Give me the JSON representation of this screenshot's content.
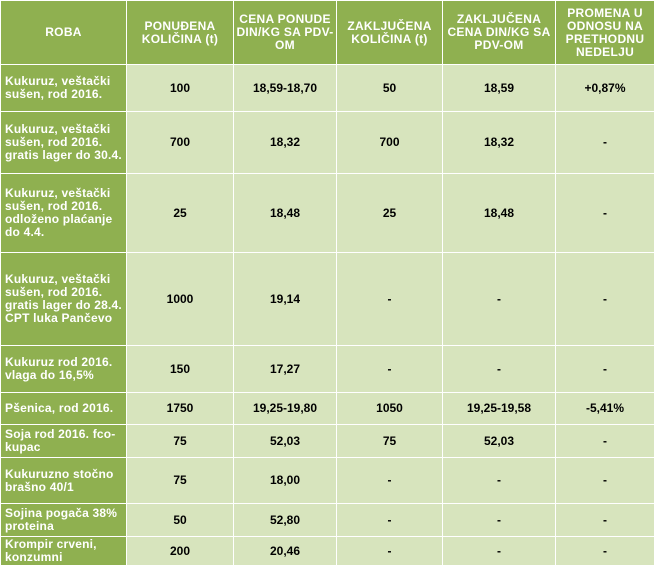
{
  "headers": {
    "roba": "ROBA",
    "offered_qty": "PONUĐENA KOLIČINA (t)",
    "offer_price": "CENA PONUDE DIN/KG SA PDV-OM",
    "closed_qty": "ZAKLJUČENA KOLIČINA (t)",
    "closed_price": "ZAKLJUČENA CENA DIN/KG SA PDV-OM",
    "change": "PROMENA U ODNOSU NA PRETHODNU NEDELJU"
  },
  "rows": [
    {
      "name": "Kukuruz, veštački sušen, rod 2016.",
      "offered_qty": "100",
      "offer_price": "18,59-18,70",
      "closed_qty": "50",
      "closed_price": "18,59",
      "change": "+0,87%"
    },
    {
      "name": "Kukuruz, veštački sušen, rod 2016. gratis lager do 30.4.",
      "offered_qty": "700",
      "offer_price": "18,32",
      "closed_qty": "700",
      "closed_price": "18,32",
      "change": "-"
    },
    {
      "name": "Kukuruz, veštački sušen, rod 2016. odloženo plaćanje do 4.4.",
      "offered_qty": "25",
      "offer_price": "18,48",
      "closed_qty": "25",
      "closed_price": "18,48",
      "change": "-"
    },
    {
      "name": "Kukuruz, veštački sušen, rod 2016. gratis lager do 28.4. CPT luka Pančevo",
      "offered_qty": "1000",
      "offer_price": "19,14",
      "closed_qty": "-",
      "closed_price": "-",
      "change": "-"
    },
    {
      "name": "Kukuruz rod 2016. vlaga do 16,5%",
      "offered_qty": "150",
      "offer_price": "17,27",
      "closed_qty": "-",
      "closed_price": "-",
      "change": "-"
    },
    {
      "name": "Pšenica, rod 2016.",
      "offered_qty": "1750",
      "offer_price": "19,25-19,80",
      "closed_qty": "1050",
      "closed_price": "19,25-19,58",
      "change": "-5,41%"
    },
    {
      "name": "Soja rod 2016. fco-kupac",
      "offered_qty": "75",
      "offer_price": "52,03",
      "closed_qty": "75",
      "closed_price": "52,03",
      "change": "-"
    },
    {
      "name": "Kukuruzno stočno brašno 40/1",
      "offered_qty": "75",
      "offer_price": "18,00",
      "closed_qty": "-",
      "closed_price": "-",
      "change": "-"
    },
    {
      "name": "Sojina pogača 38% proteina",
      "offered_qty": "50",
      "offer_price": "52,80",
      "closed_qty": "-",
      "closed_price": "-",
      "change": "-"
    },
    {
      "name": "Krompir crveni, konzumni",
      "offered_qty": "200",
      "offer_price": "20,46",
      "closed_qty": "-",
      "closed_price": "-",
      "change": "-"
    }
  ]
}
